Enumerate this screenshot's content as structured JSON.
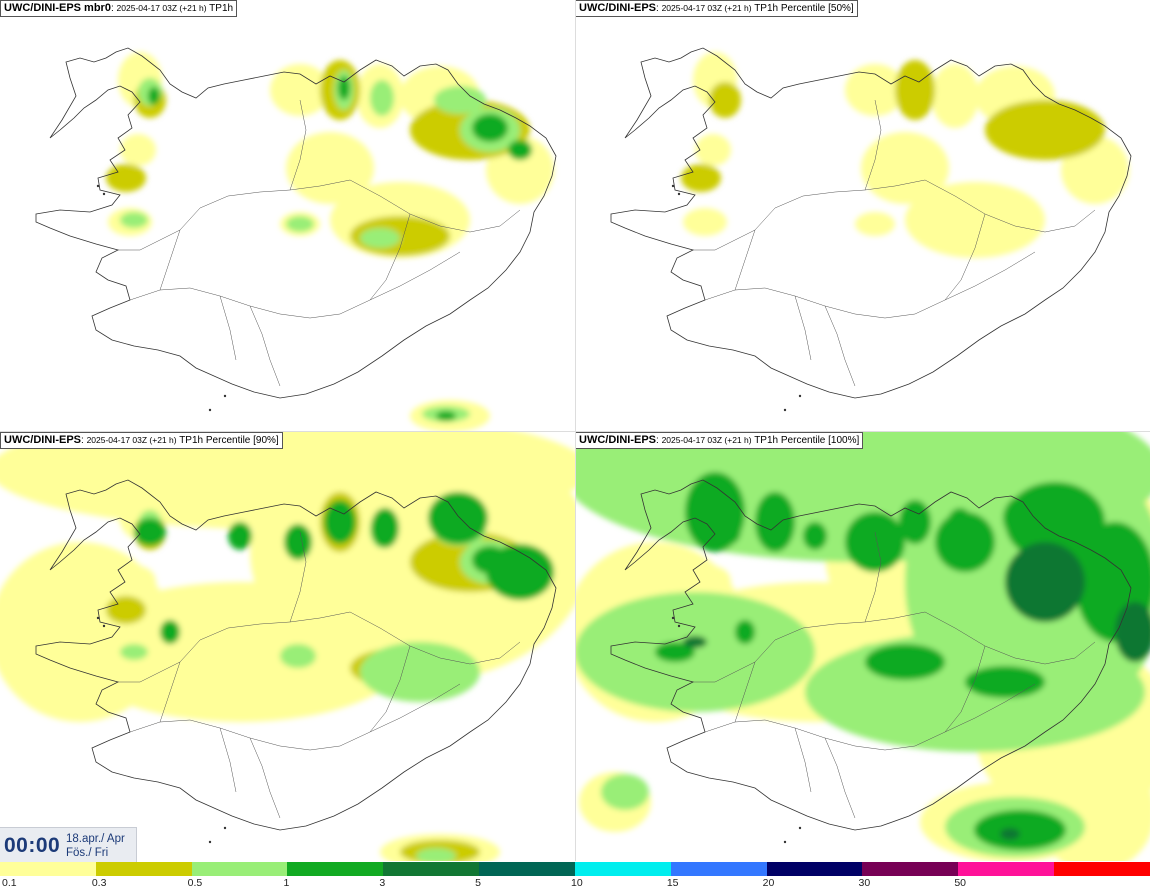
{
  "panels": [
    {
      "model": "UWC/DINI-EPS mbr0",
      "run": "2025-04-17 03Z (+21 h)",
      "field": "TP1h"
    },
    {
      "model": "UWC/DINI-EPS",
      "run": "2025-04-17 03Z (+21 h)",
      "field": "TP1h Percentile [50%]"
    },
    {
      "model": "UWC/DINI-EPS",
      "run": "2025-04-17 03Z (+21 h)",
      "field": "TP1h Percentile [90%]"
    },
    {
      "model": "UWC/DINI-EPS",
      "run": "2025-04-17 03Z (+21 h)",
      "field": "TP1h Percentile [100%]"
    }
  ],
  "time_box": {
    "time": "00:00",
    "date_line1": "18.apr./ Apr",
    "date_line2": "Fös./ Fri"
  },
  "colorbar": {
    "labels": [
      "0.1",
      "0.3",
      "0.5",
      "1",
      "3",
      "5",
      "10",
      "15",
      "20",
      "30",
      "50"
    ],
    "colors": [
      "#ffff99",
      "#cccc00",
      "#99ee77",
      "#11aa22",
      "#117733",
      "#006655",
      "#00eeee",
      "#3377ff",
      "#000066",
      "#770055",
      "#ff1199",
      "#ff0000"
    ]
  },
  "precip_colors": {
    "light": "#ffff99",
    "olive": "#cccc00",
    "lightgreen": "#99ee77",
    "green": "#11aa22",
    "darkgreen": "#117733",
    "teal": "#006655",
    "coast": "#333333"
  }
}
